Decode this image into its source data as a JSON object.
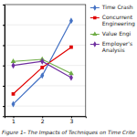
{
  "chart_data": {
    "type": "line",
    "title": "Figure 1– The Impacts of Techniques on Time Crite",
    "x": [
      1,
      2,
      3
    ],
    "series": [
      {
        "name": "Time Crash",
        "color": "#4472C4",
        "marker": "diamond",
        "values": [
          1.1,
          2.5,
          5.2
        ]
      },
      {
        "name": "Concurrent\nEngineering",
        "color": "#E00000",
        "marker": "square",
        "values": [
          1.6,
          2.9,
          3.9
        ]
      },
      {
        "name": "Value Engi",
        "color": "#70AD47",
        "marker": "triangle",
        "values": [
          3.2,
          3.3,
          2.6
        ]
      },
      {
        "name": "Employer's\nAnalysis",
        "color": "#7030A0",
        "marker": "diamond",
        "values": [
          3.0,
          3.2,
          2.4
        ]
      }
    ],
    "xlim": [
      0.7,
      3.5
    ],
    "ylim": [
      0.5,
      6.0
    ],
    "xticks": [
      1,
      2,
      3
    ],
    "yticks": [
      1,
      2,
      3,
      4,
      5
    ],
    "grid": "y",
    "tick_labels": "x",
    "legend": "right"
  }
}
